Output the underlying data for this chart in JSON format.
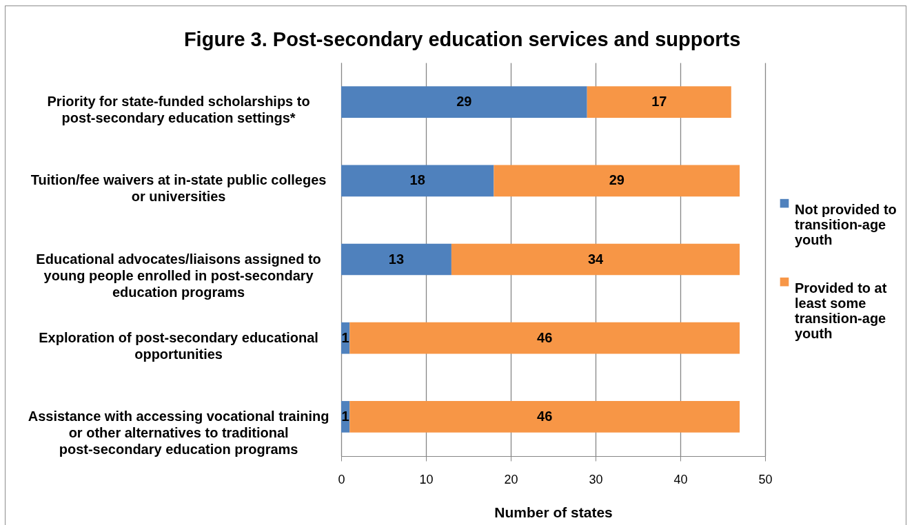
{
  "chart_data": {
    "type": "bar",
    "title": "Figure 3. Post-secondary education services and supports",
    "xlabel": "Number of states",
    "orientation": "horizontal",
    "stacked": true,
    "categories": [
      "Priority for state-funded scholarships to post-secondary education settings*",
      "Tuition/fee waivers at in-state public colleges or universities",
      "Educational advocates/liaisons assigned to young people enrolled in post-secondary education programs",
      "Exploration of post-secondary educational opportunities",
      "Assistance with accessing vocational training or other alternatives to traditional post-secondary education programs"
    ],
    "series": [
      {
        "name": "Not provided to transition-age youth",
        "color": "#4f81bd",
        "values": [
          29,
          18,
          13,
          1,
          1
        ]
      },
      {
        "name": "Provided to at least some transition-age youth",
        "color": "#f79646",
        "values": [
          17,
          29,
          34,
          46,
          46
        ]
      }
    ],
    "xlim": [
      0,
      50
    ],
    "xticks": [
      0,
      10,
      20,
      30,
      40,
      50
    ],
    "grid": "x",
    "legend": "right",
    "data_labels": true
  }
}
